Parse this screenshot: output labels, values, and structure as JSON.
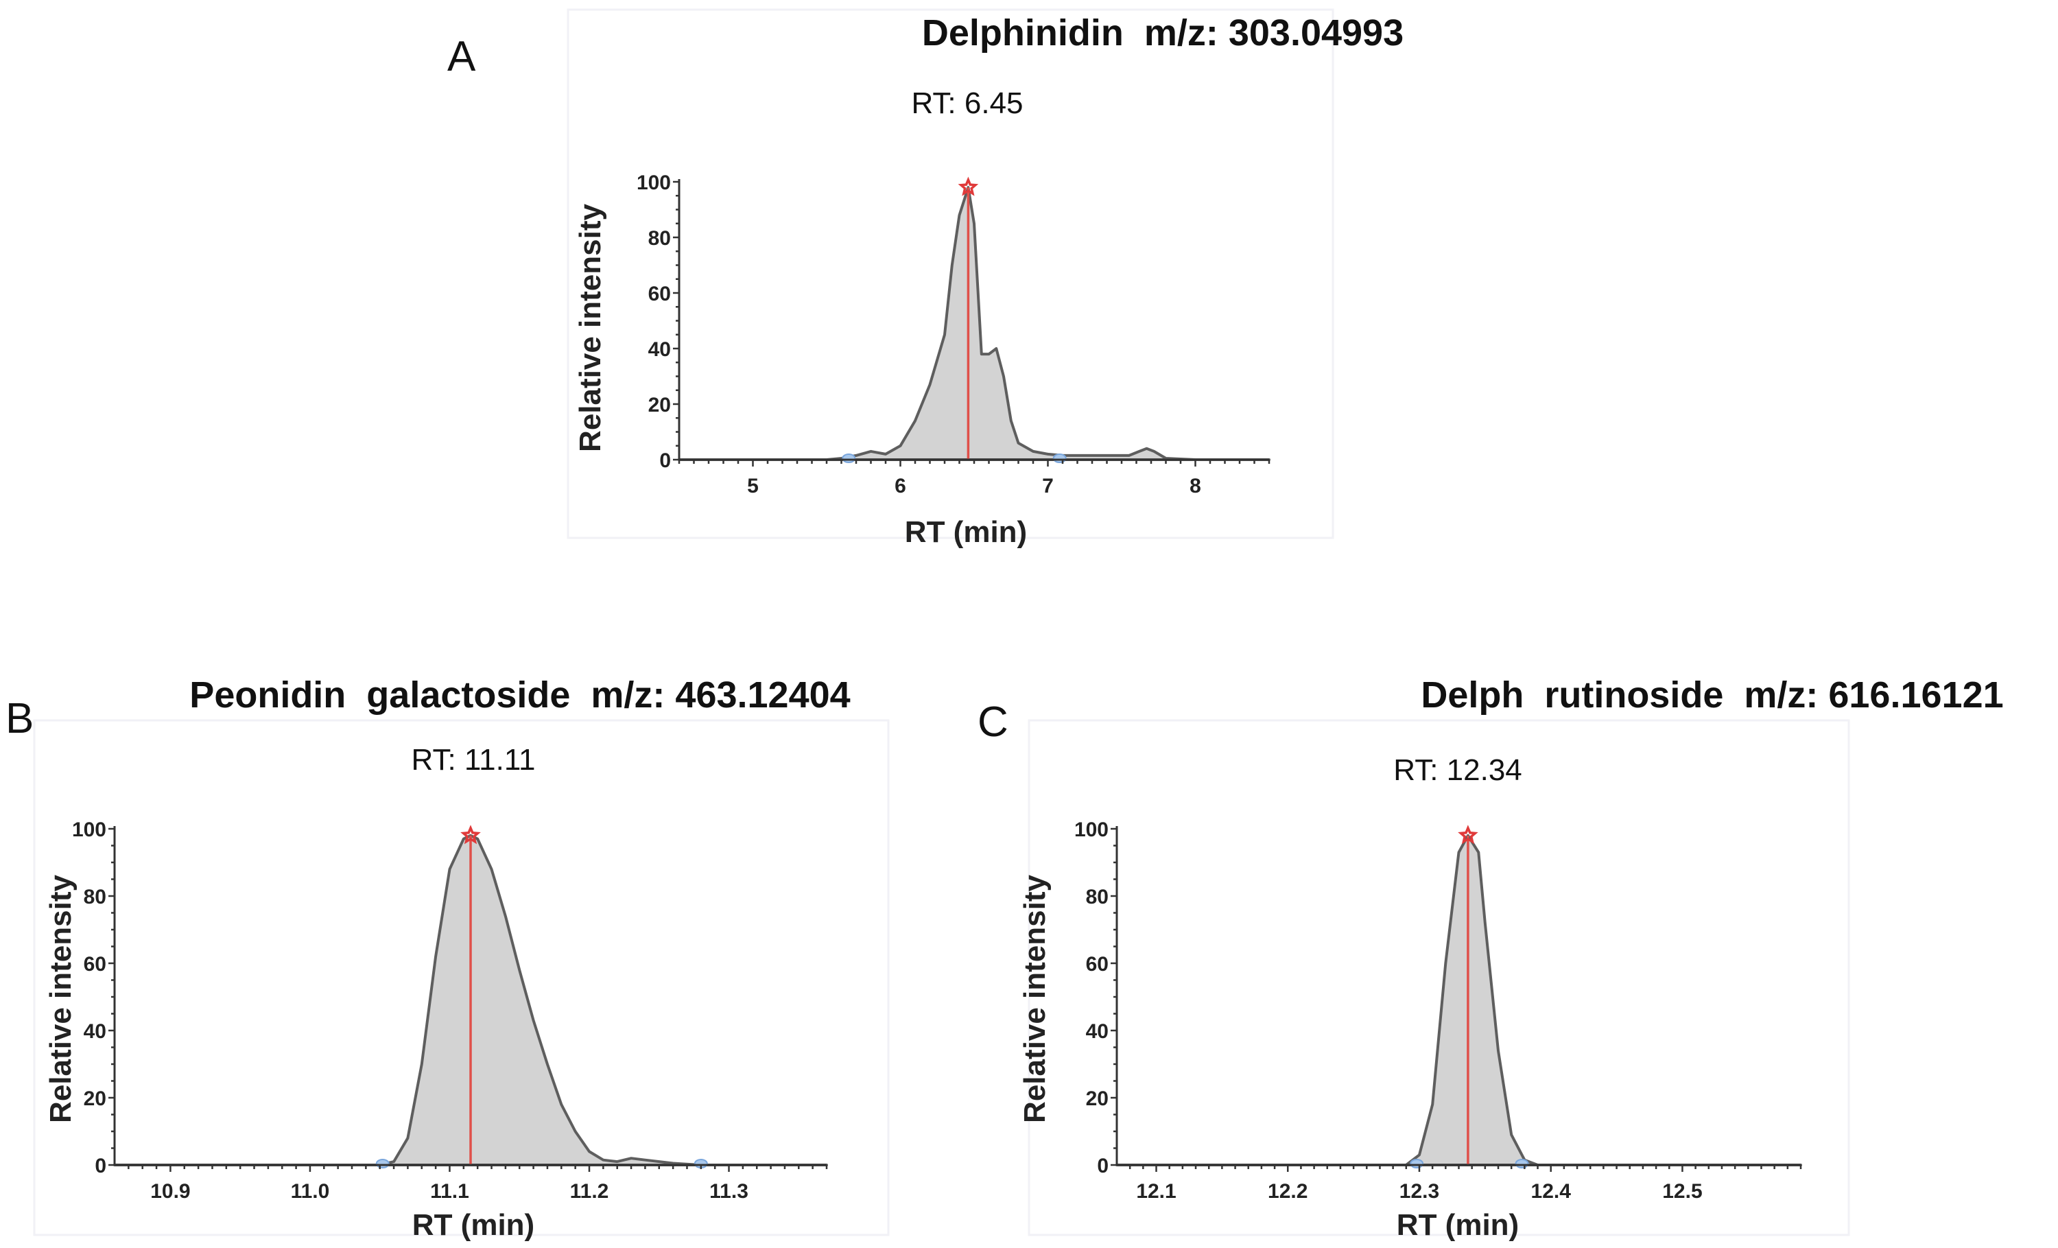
{
  "chart_data": [
    {
      "panel": "A",
      "type": "area",
      "title": "Delphinidin  m/z: 303.04993",
      "rt_label": "RT: 6.45",
      "apex_rt": 6.46,
      "xlabel": "RT (min)",
      "ylabel": "Relative intensity",
      "xlim": [
        4.5,
        8.5
      ],
      "ylim": [
        0,
        100
      ],
      "xticks": [
        5,
        6,
        7,
        8
      ],
      "xtick_labels": [
        "5",
        "6",
        "7",
        "8"
      ],
      "yticks": [
        0,
        20,
        40,
        60,
        80,
        100
      ],
      "ytick_labels": [
        "0",
        "20",
        "40",
        "60",
        "80",
        "100"
      ],
      "integration_bounds": [
        5.65,
        7.08
      ],
      "series": [
        {
          "name": "Delphinidin",
          "x": [
            4.5,
            5.5,
            5.6,
            5.7,
            5.8,
            5.9,
            6.0,
            6.1,
            6.2,
            6.3,
            6.35,
            6.4,
            6.46,
            6.5,
            6.55,
            6.6,
            6.65,
            6.7,
            6.75,
            6.8,
            6.9,
            7.0,
            7.1,
            7.2,
            7.4,
            7.55,
            7.62,
            7.67,
            7.72,
            7.8,
            8.0,
            8.5
          ],
          "y": [
            0,
            0,
            0.5,
            1.5,
            3,
            2,
            5,
            14,
            27,
            45,
            70,
            88,
            98,
            85,
            38,
            38,
            40,
            30,
            14,
            6,
            3,
            2,
            1.5,
            1.5,
            1.5,
            1.5,
            3,
            4,
            3,
            0.5,
            0,
            0
          ]
        }
      ]
    },
    {
      "panel": "B",
      "type": "area",
      "title": "Peonidin  galactoside  m/z: 463.12404",
      "rt_label": "RT: 11.11",
      "apex_rt": 11.115,
      "xlabel": "RT (min)",
      "ylabel": "Relative intensity",
      "xlim": [
        10.86,
        11.37
      ],
      "ylim": [
        0,
        100
      ],
      "xticks": [
        10.9,
        11.0,
        11.1,
        11.2,
        11.3
      ],
      "xtick_labels": [
        "10.9",
        "11.0",
        "11.1",
        "11.2",
        "11.3"
      ],
      "yticks": [
        0,
        20,
        40,
        60,
        80,
        100
      ],
      "ytick_labels": [
        "0",
        "20",
        "40",
        "60",
        "80",
        "100"
      ],
      "integration_bounds": [
        11.052,
        11.28
      ],
      "series": [
        {
          "name": "Peonidin galactoside",
          "x": [
            10.86,
            11.05,
            11.06,
            11.07,
            11.08,
            11.09,
            11.1,
            11.11,
            11.115,
            11.12,
            11.13,
            11.14,
            11.15,
            11.16,
            11.17,
            11.18,
            11.19,
            11.2,
            11.21,
            11.22,
            11.23,
            11.24,
            11.26,
            11.28,
            11.37
          ],
          "y": [
            0,
            0,
            1,
            8,
            30,
            62,
            88,
            97,
            98,
            97,
            88,
            74,
            58,
            43,
            30,
            18,
            10,
            4,
            1.5,
            1,
            2,
            1.5,
            0.5,
            0,
            0
          ]
        }
      ]
    },
    {
      "panel": "C",
      "type": "area",
      "title": "Delph  rutinoside  m/z: 616.16121",
      "rt_label": "RT: 12.34",
      "apex_rt": 12.337,
      "xlabel": "RT (min)",
      "ylabel": "Relative intensity",
      "xlim": [
        12.07,
        12.59
      ],
      "ylim": [
        0,
        100
      ],
      "xticks": [
        12.1,
        12.2,
        12.3,
        12.4,
        12.5
      ],
      "xtick_labels": [
        "12.1",
        "12.2",
        "12.3",
        "12.4",
        "12.5"
      ],
      "yticks": [
        0,
        20,
        40,
        60,
        80,
        100
      ],
      "ytick_labels": [
        "0",
        "20",
        "40",
        "60",
        "80",
        "100"
      ],
      "integration_bounds": [
        12.298,
        12.378
      ],
      "series": [
        {
          "name": "Delph rutinoside",
          "x": [
            12.07,
            12.29,
            12.3,
            12.31,
            12.32,
            12.33,
            12.337,
            12.345,
            12.35,
            12.36,
            12.37,
            12.38,
            12.39,
            12.59
          ],
          "y": [
            0,
            0,
            3,
            18,
            60,
            93,
            98,
            93,
            72,
            34,
            9,
            1.5,
            0,
            0
          ]
        }
      ]
    }
  ]
}
